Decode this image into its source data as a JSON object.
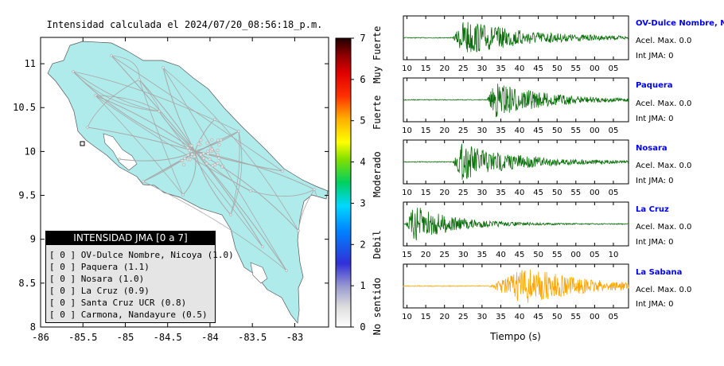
{
  "title": "Intensidad calculada el 2024/07/20_08:56:18_p.m.",
  "colors": {
    "map_land": "#b0ebec",
    "map_roads": "#a8a8a8",
    "trace_green": "#0a6e0a",
    "trace_orange": "#ffa500",
    "station_name": "#0000ee"
  },
  "chart_data": [
    {
      "type": "map",
      "yticks": [
        "11",
        "10.5",
        "10",
        "9.5",
        "9",
        "8.5",
        "8"
      ],
      "xticks": [
        "-86",
        "-85.5",
        "-85",
        "-84.5",
        "-84",
        "-83.5",
        "-83"
      ],
      "xlim": [
        -86,
        -82.6
      ],
      "ylim": [
        8,
        11.3
      ],
      "colorbar": {
        "range": [
          0,
          7
        ],
        "ticks": [
          "0",
          "1",
          "2",
          "3",
          "4",
          "5",
          "6",
          "7"
        ],
        "labels": [
          "No sentido",
          "Debil",
          "Moderado",
          "Fuerte",
          "Muy Fuerte"
        ]
      }
    },
    {
      "type": "line",
      "xlabel": "Tiempo (s)",
      "traces": [
        {
          "name": "OV-Dulce Nombre, Nicoya",
          "acel": "Acel. Max. 0.0",
          "int": "Int JMA: 0",
          "ticks": [
            "10",
            "15",
            "20",
            "25",
            "30",
            "35",
            "40",
            "45",
            "50",
            "55",
            "00",
            "05"
          ],
          "onset": 0.22,
          "peak": 0.27,
          "decay": 0.28,
          "color": "green"
        },
        {
          "name": "Paquera",
          "acel": "Acel. Max. 0.0",
          "int": "Int JMA: 0",
          "ticks": [
            "10",
            "15",
            "20",
            "25",
            "30",
            "35",
            "40",
            "45",
            "50",
            "55",
            "00",
            "05"
          ],
          "onset": 0.37,
          "peak": 0.41,
          "decay": 0.22,
          "color": "green"
        },
        {
          "name": "Nosara",
          "acel": "Acel. Max. 0.0",
          "int": "Int JMA: 0",
          "ticks": [
            "10",
            "15",
            "20",
            "25",
            "30",
            "35",
            "40",
            "45",
            "50",
            "55",
            "00",
            "05"
          ],
          "onset": 0.22,
          "peak": 0.26,
          "decay": 0.25,
          "color": "green"
        },
        {
          "name": "La Cruz",
          "acel": "Acel. Max. 0.0",
          "int": "Int JMA: 0",
          "ticks": [
            "15",
            "20",
            "25",
            "30",
            "35",
            "40",
            "45",
            "50",
            "55",
            "00",
            "05",
            "10"
          ],
          "onset": 0.01,
          "peak": 0.05,
          "decay": 0.18,
          "color": "green"
        },
        {
          "name": "La Sabana",
          "acel": "Acel. Max. 0.0",
          "int": "Int JMA: 0",
          "ticks": [
            "10",
            "15",
            "20",
            "25",
            "30",
            "35",
            "40",
            "45",
            "50",
            "55",
            "00",
            "05"
          ],
          "onset": 0.38,
          "peak": 0.55,
          "decay": 0.25,
          "color": "orange"
        }
      ]
    }
  ],
  "legend": {
    "header": "INTENSIDAD JMA [0 a 7]",
    "rows": [
      "[ 0 ]  OV-Dulce Nombre, Nicoya (1.0)",
      "[ 0 ]  Paquera (1.1)",
      "[ 0 ]  Nosara (1.0)",
      "[ 0 ]  La Cruz (0.9)",
      "[ 0 ]  Santa Cruz UCR (0.8)",
      "[ 0 ]  Carmona, Nandayure (0.5)"
    ]
  }
}
